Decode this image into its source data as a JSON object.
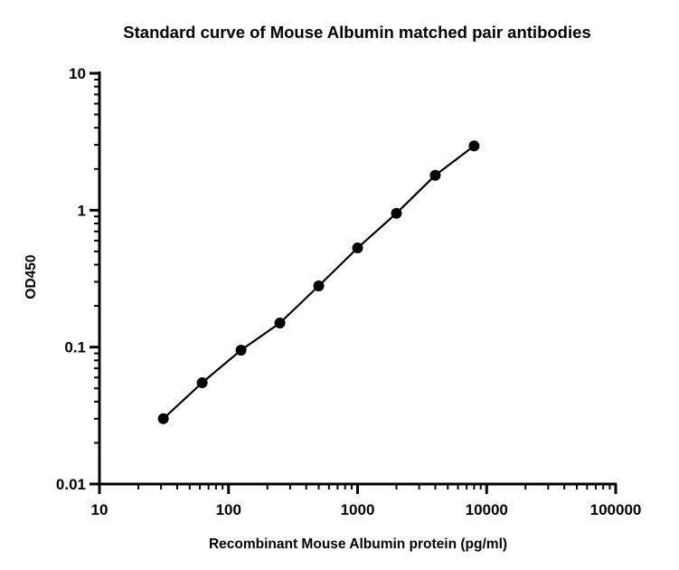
{
  "chart_data": {
    "type": "scatter",
    "title": "Standard curve of Mouse Albumin matched pair antibodies",
    "xlabel": "Recombinant Mouse Albumin protein (pg/ml)",
    "ylabel": "OD450",
    "xscale": "log",
    "yscale": "log",
    "xlim": [
      10,
      100000
    ],
    "ylim": [
      0.01,
      10
    ],
    "xticks": [
      "10",
      "100",
      "1000",
      "10000",
      "100000"
    ],
    "yticks": [
      "0.01",
      "0.1",
      "1",
      "10"
    ],
    "grid": false,
    "legend": "none",
    "series": [
      {
        "points": [
          {
            "x": 31.25,
            "y": 0.03
          },
          {
            "x": 62.5,
            "y": 0.055
          },
          {
            "x": 125,
            "y": 0.095
          },
          {
            "x": 250,
            "y": 0.15
          },
          {
            "x": 500,
            "y": 0.28
          },
          {
            "x": 1000,
            "y": 0.53
          },
          {
            "x": 2000,
            "y": 0.95
          },
          {
            "x": 4000,
            "y": 1.8
          },
          {
            "x": 8000,
            "y": 2.95
          }
        ],
        "fit_line": true,
        "color": "#000000"
      }
    ]
  }
}
